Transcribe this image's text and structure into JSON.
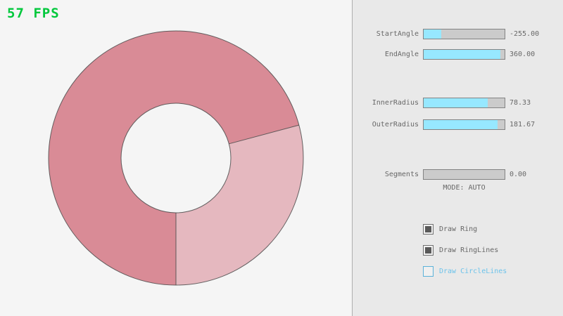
{
  "fps": {
    "text": "57 FPS",
    "color": "#00c83c"
  },
  "ring": {
    "start_angle": -255.0,
    "end_angle": 360.0,
    "inner_radius": 78.33,
    "outer_radius": 181.67,
    "segments": 0,
    "colors": {
      "sector_dark": "#d98b96",
      "sector_light": "#e5b8bf",
      "line": "#4a4a4a"
    }
  },
  "panel": {
    "sliders": [
      {
        "label": "StartAngle",
        "value": "-255.00",
        "fill_pct": 22
      },
      {
        "label": "EndAngle",
        "value": "360.00",
        "fill_pct": 95
      },
      {
        "label": "InnerRadius",
        "value": "78.33",
        "fill_pct": 79
      },
      {
        "label": "OuterRadius",
        "value": "181.67",
        "fill_pct": 91
      },
      {
        "label": "Segments",
        "value": "0.00",
        "fill_pct": 0
      }
    ],
    "mode_text": "MODE: AUTO",
    "checkboxes": [
      {
        "label": "Draw Ring",
        "state": "checked"
      },
      {
        "label": "Draw RingLines",
        "state": "checked"
      },
      {
        "label": "Draw CircleLines",
        "state": "focused"
      }
    ],
    "colors": {
      "accent": "#97e8ff",
      "focus_border": "#5bb2d9",
      "focus_text": "#6dc3eb"
    }
  }
}
